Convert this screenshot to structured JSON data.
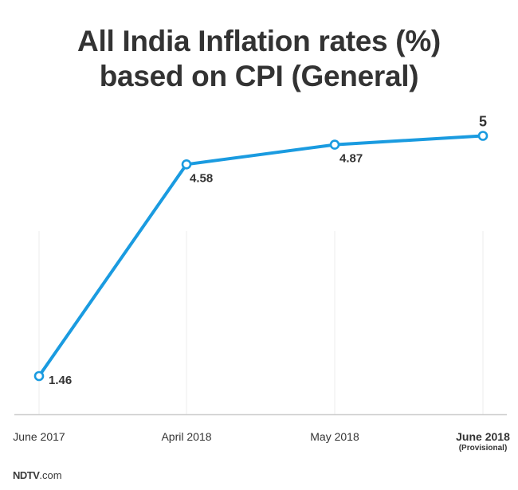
{
  "chart_data": {
    "type": "line",
    "title_line1": "All India Inflation rates (%)",
    "title_line2": "based on CPI (General)",
    "categories": [
      "June 2017",
      "April 2018",
      "May 2018",
      "June 2018"
    ],
    "category_notes": [
      "",
      "",
      "",
      "(Provisional)"
    ],
    "values": [
      1.46,
      4.58,
      4.87,
      5
    ],
    "value_labels": [
      "1.46",
      "4.58",
      "4.87",
      "5"
    ],
    "ylim": [
      0.75,
      5.6
    ],
    "grid": "vertical",
    "xlabel": "",
    "ylabel": "",
    "line_color": "#1a9be0",
    "axis_color": "#cccccc",
    "text_color": "#333333"
  },
  "footer": {
    "brand": "NDTV",
    "domain": ".com"
  }
}
